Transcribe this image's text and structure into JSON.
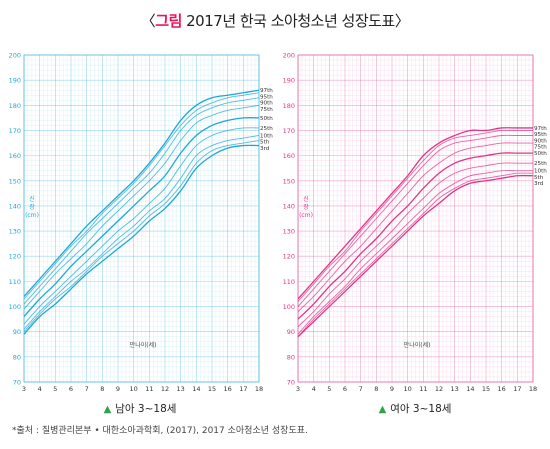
{
  "title": {
    "open": "〈",
    "accent": "그림",
    "rest": " 2017년 한국 소아청소년 성장도표",
    "close": "〉"
  },
  "chart_data": [
    {
      "type": "line",
      "name": "남아 3-18세",
      "color": "#1ea7d6",
      "xlabel": "만나이(세)",
      "ylabel": [
        "신",
        "장",
        "(cm)"
      ],
      "xlim": [
        3,
        18
      ],
      "ylim": [
        70,
        200
      ],
      "xticks": [
        3,
        4,
        5,
        6,
        7,
        8,
        9,
        10,
        11,
        12,
        13,
        14,
        15,
        16,
        17,
        18
      ],
      "yticks": [
        70,
        80,
        90,
        100,
        110,
        120,
        130,
        140,
        150,
        160,
        170,
        180,
        190,
        200
      ],
      "grid": true,
      "x": [
        3,
        4,
        5,
        6,
        7,
        8,
        9,
        10,
        11,
        12,
        13,
        14,
        15,
        16,
        17,
        18
      ],
      "series": [
        {
          "name": "97th",
          "values": [
            104,
            111,
            118,
            125,
            132,
            138,
            144,
            150,
            157,
            165,
            174,
            180,
            183,
            184,
            185,
            186
          ]
        },
        {
          "name": "95th",
          "values": [
            103,
            110,
            117,
            124,
            130,
            137,
            143,
            149,
            156,
            164,
            172,
            178,
            181,
            183,
            184,
            185
          ]
        },
        {
          "name": "90th",
          "values": [
            101,
            108,
            115,
            122,
            129,
            135,
            141,
            147,
            153,
            161,
            170,
            176,
            179,
            181,
            182,
            183
          ]
        },
        {
          "name": "75th",
          "values": [
            99,
            106,
            113,
            119,
            125,
            132,
            138,
            144,
            150,
            157,
            166,
            173,
            176,
            178,
            179,
            180
          ]
        },
        {
          "name": "50th",
          "values": [
            96,
            103,
            109,
            116,
            122,
            128,
            134,
            140,
            146,
            152,
            161,
            168,
            172,
            174,
            175,
            175
          ]
        },
        {
          "name": "25th",
          "values": [
            93,
            100,
            106,
            112,
            118,
            124,
            130,
            135,
            141,
            147,
            156,
            164,
            168,
            170,
            171,
            171
          ]
        },
        {
          "name": "10th",
          "values": [
            91,
            98,
            104,
            110,
            115,
            121,
            127,
            132,
            138,
            143,
            151,
            160,
            164,
            166,
            167,
            168
          ]
        },
        {
          "name": "5th",
          "values": [
            90,
            97,
            103,
            108,
            114,
            120,
            125,
            130,
            136,
            141,
            148,
            157,
            162,
            164,
            165,
            166
          ]
        },
        {
          "name": "3rd",
          "values": [
            89,
            96,
            101,
            107,
            113,
            118,
            123,
            128,
            134,
            139,
            146,
            155,
            160,
            163,
            164,
            164
          ]
        }
      ]
    },
    {
      "type": "line",
      "name": "여아 3-18세",
      "color": "#e0348a",
      "xlabel": "만나이(세)",
      "ylabel": [
        "신",
        "장",
        "(cm)"
      ],
      "xlim": [
        3,
        18
      ],
      "ylim": [
        70,
        200
      ],
      "xticks": [
        3,
        4,
        5,
        6,
        7,
        8,
        9,
        10,
        11,
        12,
        13,
        14,
        15,
        16,
        17,
        18
      ],
      "yticks": [
        70,
        80,
        90,
        100,
        110,
        120,
        130,
        140,
        150,
        160,
        170,
        180,
        190,
        200
      ],
      "grid": true,
      "x": [
        3,
        4,
        5,
        6,
        7,
        8,
        9,
        10,
        11,
        12,
        13,
        14,
        15,
        16,
        17,
        18
      ],
      "series": [
        {
          "name": "97th",
          "values": [
            103,
            110,
            117,
            124,
            131,
            138,
            145,
            152,
            160,
            165,
            168,
            170,
            170,
            171,
            171,
            171
          ]
        },
        {
          "name": "95th",
          "values": [
            102,
            109,
            116,
            122,
            130,
            137,
            144,
            151,
            158,
            164,
            167,
            168,
            169,
            170,
            170,
            170
          ]
        },
        {
          "name": "90th",
          "values": [
            100,
            107,
            114,
            121,
            128,
            135,
            142,
            149,
            156,
            162,
            165,
            166,
            167,
            168,
            168,
            168
          ]
        },
        {
          "name": "75th",
          "values": [
            98,
            104,
            111,
            118,
            124,
            131,
            138,
            145,
            152,
            157,
            161,
            163,
            164,
            165,
            165,
            165
          ]
        },
        {
          "name": "50th",
          "values": [
            95,
            101,
            108,
            114,
            121,
            127,
            134,
            140,
            147,
            153,
            157,
            159,
            160,
            161,
            161,
            161
          ]
        },
        {
          "name": "25th",
          "values": [
            92,
            98,
            105,
            111,
            118,
            124,
            130,
            137,
            143,
            149,
            153,
            155,
            156,
            157,
            157,
            157
          ]
        },
        {
          "name": "10th",
          "values": [
            89,
            96,
            102,
            108,
            115,
            121,
            127,
            133,
            139,
            145,
            149,
            152,
            153,
            154,
            154,
            154
          ]
        },
        {
          "name": "5th",
          "values": [
            88,
            95,
            101,
            107,
            113,
            119,
            125,
            131,
            137,
            143,
            147,
            150,
            151,
            152,
            153,
            153
          ]
        },
        {
          "name": "3rd",
          "values": [
            88,
            94,
            100,
            106,
            112,
            118,
            124,
            130,
            136,
            141,
            146,
            149,
            150,
            151,
            152,
            152
          ]
        }
      ]
    }
  ],
  "captions": {
    "tri": "▲",
    "left": "남아 3~18세",
    "right": "여아 3~18세"
  },
  "source": "*출처 : 질병관리본부 • 대한소아과학회, (2017), 2017 소아청소년 성장도표."
}
